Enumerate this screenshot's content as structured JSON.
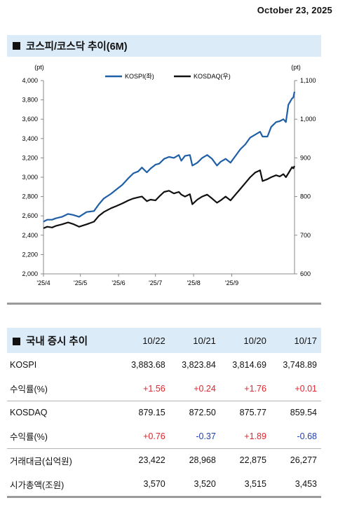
{
  "report_date": "October 23, 2025",
  "chart_title": "코스피/코스닥 추이(6M)",
  "chart_data": {
    "type": "line",
    "title": "코스피/코스닥 추이(6M)",
    "left_unit": "(pt)",
    "right_unit": "(pt)",
    "y_left_range": [
      2000,
      4000
    ],
    "y_right_range": [
      600,
      1100
    ],
    "y_left_ticks": [
      "2,000",
      "2,200",
      "2,400",
      "2,600",
      "2,800",
      "3,000",
      "3,200",
      "3,400",
      "3,600",
      "3,800",
      "4,000"
    ],
    "y_right_ticks": [
      "600",
      "700",
      "800",
      "900",
      "1,000",
      "1,100"
    ],
    "x_ticks": [
      "'25/4",
      "'25/5",
      "'25/6",
      "'25/7",
      "'25/8",
      "'25/9"
    ],
    "x_range": [
      "2025-04-01",
      "2025-10-22"
    ],
    "grid": false,
    "legend_position": "top-center",
    "series": [
      {
        "name": "KOSPI(좌)",
        "axis": "left",
        "color": "#1f5fa6",
        "points": [
          [
            "2025-04-01",
            2540
          ],
          [
            "2025-04-04",
            2560
          ],
          [
            "2025-04-08",
            2560
          ],
          [
            "2025-04-11",
            2575
          ],
          [
            "2025-04-16",
            2590
          ],
          [
            "2025-04-21",
            2620
          ],
          [
            "2025-04-25",
            2610
          ],
          [
            "2025-04-30",
            2590
          ],
          [
            "2025-05-06",
            2640
          ],
          [
            "2025-05-12",
            2650
          ],
          [
            "2025-05-16",
            2720
          ],
          [
            "2025-05-20",
            2780
          ],
          [
            "2025-05-26",
            2830
          ],
          [
            "2025-05-30",
            2870
          ],
          [
            "2025-06-04",
            2920
          ],
          [
            "2025-06-09",
            2990
          ],
          [
            "2025-06-13",
            3040
          ],
          [
            "2025-06-17",
            3060
          ],
          [
            "2025-06-20",
            3100
          ],
          [
            "2025-06-24",
            3050
          ],
          [
            "2025-06-27",
            3090
          ],
          [
            "2025-07-01",
            3130
          ],
          [
            "2025-07-04",
            3140
          ],
          [
            "2025-07-08",
            3190
          ],
          [
            "2025-07-12",
            3210
          ],
          [
            "2025-07-16",
            3200
          ],
          [
            "2025-07-20",
            3230
          ],
          [
            "2025-07-22",
            3170
          ],
          [
            "2025-07-25",
            3220
          ],
          [
            "2025-07-29",
            3230
          ],
          [
            "2025-07-31",
            3120
          ],
          [
            "2025-08-04",
            3150
          ],
          [
            "2025-08-08",
            3200
          ],
          [
            "2025-08-12",
            3230
          ],
          [
            "2025-08-16",
            3190
          ],
          [
            "2025-08-20",
            3120
          ],
          [
            "2025-08-23",
            3160
          ],
          [
            "2025-08-27",
            3190
          ],
          [
            "2025-08-31",
            3150
          ],
          [
            "2025-09-04",
            3220
          ],
          [
            "2025-09-08",
            3290
          ],
          [
            "2025-09-12",
            3340
          ],
          [
            "2025-09-16",
            3410
          ],
          [
            "2025-09-20",
            3440
          ],
          [
            "2025-09-24",
            3470
          ],
          [
            "2025-09-26",
            3420
          ],
          [
            "2025-09-30",
            3420
          ],
          [
            "2025-10-03",
            3520
          ],
          [
            "2025-10-07",
            3570
          ],
          [
            "2025-10-10",
            3580
          ],
          [
            "2025-10-13",
            3600
          ],
          [
            "2025-10-15",
            3570
          ],
          [
            "2025-10-17",
            3749
          ],
          [
            "2025-10-20",
            3815
          ],
          [
            "2025-10-21",
            3824
          ],
          [
            "2025-10-22",
            3884
          ]
        ]
      },
      {
        "name": "KOSDAQ(우)",
        "axis": "right",
        "color": "#111111",
        "points": [
          [
            "2025-04-01",
            718
          ],
          [
            "2025-04-04",
            722
          ],
          [
            "2025-04-08",
            720
          ],
          [
            "2025-04-11",
            724
          ],
          [
            "2025-04-16",
            728
          ],
          [
            "2025-04-21",
            733
          ],
          [
            "2025-04-25",
            729
          ],
          [
            "2025-04-30",
            722
          ],
          [
            "2025-05-06",
            728
          ],
          [
            "2025-05-12",
            735
          ],
          [
            "2025-05-16",
            750
          ],
          [
            "2025-05-20",
            760
          ],
          [
            "2025-05-26",
            770
          ],
          [
            "2025-05-30",
            775
          ],
          [
            "2025-06-04",
            782
          ],
          [
            "2025-06-09",
            790
          ],
          [
            "2025-06-13",
            795
          ],
          [
            "2025-06-17",
            798
          ],
          [
            "2025-06-20",
            800
          ],
          [
            "2025-06-24",
            788
          ],
          [
            "2025-06-27",
            792
          ],
          [
            "2025-07-01",
            790
          ],
          [
            "2025-07-04",
            800
          ],
          [
            "2025-07-08",
            812
          ],
          [
            "2025-07-12",
            815
          ],
          [
            "2025-07-16",
            808
          ],
          [
            "2025-07-20",
            812
          ],
          [
            "2025-07-22",
            805
          ],
          [
            "2025-07-25",
            800
          ],
          [
            "2025-07-29",
            806
          ],
          [
            "2025-07-31",
            780
          ],
          [
            "2025-08-04",
            792
          ],
          [
            "2025-08-08",
            800
          ],
          [
            "2025-08-12",
            805
          ],
          [
            "2025-08-16",
            795
          ],
          [
            "2025-08-20",
            784
          ],
          [
            "2025-08-23",
            790
          ],
          [
            "2025-08-27",
            800
          ],
          [
            "2025-08-31",
            790
          ],
          [
            "2025-09-04",
            805
          ],
          [
            "2025-09-08",
            820
          ],
          [
            "2025-09-12",
            835
          ],
          [
            "2025-09-16",
            850
          ],
          [
            "2025-09-20",
            862
          ],
          [
            "2025-09-24",
            868
          ],
          [
            "2025-09-26",
            840
          ],
          [
            "2025-09-30",
            845
          ],
          [
            "2025-10-03",
            850
          ],
          [
            "2025-10-07",
            855
          ],
          [
            "2025-10-10",
            852
          ],
          [
            "2025-10-13",
            858
          ],
          [
            "2025-10-15",
            850
          ],
          [
            "2025-10-17",
            860
          ],
          [
            "2025-10-20",
            876
          ],
          [
            "2025-10-21",
            873
          ],
          [
            "2025-10-22",
            879
          ]
        ]
      }
    ]
  },
  "table": {
    "title": "국내 증시 추이",
    "dates": [
      "10/22",
      "10/21",
      "10/20",
      "10/17"
    ],
    "rows": [
      {
        "label": "KOSPI",
        "values": [
          "3,883.68",
          "3,823.84",
          "3,814.69",
          "3,748.89"
        ],
        "kind": "plain",
        "separator": false
      },
      {
        "label": "수익률(%)",
        "values": [
          "+1.56",
          "+0.24",
          "+1.76",
          "+0.01"
        ],
        "kind": "signed",
        "separator": false
      },
      {
        "label": "KOSDAQ",
        "values": [
          "879.15",
          "872.50",
          "875.77",
          "859.54"
        ],
        "kind": "plain",
        "separator": true
      },
      {
        "label": "수익률(%)",
        "values": [
          "+0.76",
          "-0.37",
          "+1.89",
          "-0.68"
        ],
        "kind": "signed",
        "separator": false
      },
      {
        "label": "거래대금(십억원)",
        "values": [
          "23,422",
          "28,968",
          "22,875",
          "26,277"
        ],
        "kind": "plain",
        "separator": true
      },
      {
        "label": "시가총액(조원)",
        "values": [
          "3,570",
          "3,520",
          "3,515",
          "3,453"
        ],
        "kind": "plain",
        "separator": false
      }
    ]
  },
  "colors": {
    "header_bg": "#dcebf8",
    "positive": "#e0242b",
    "negative": "#1f3fb0"
  }
}
